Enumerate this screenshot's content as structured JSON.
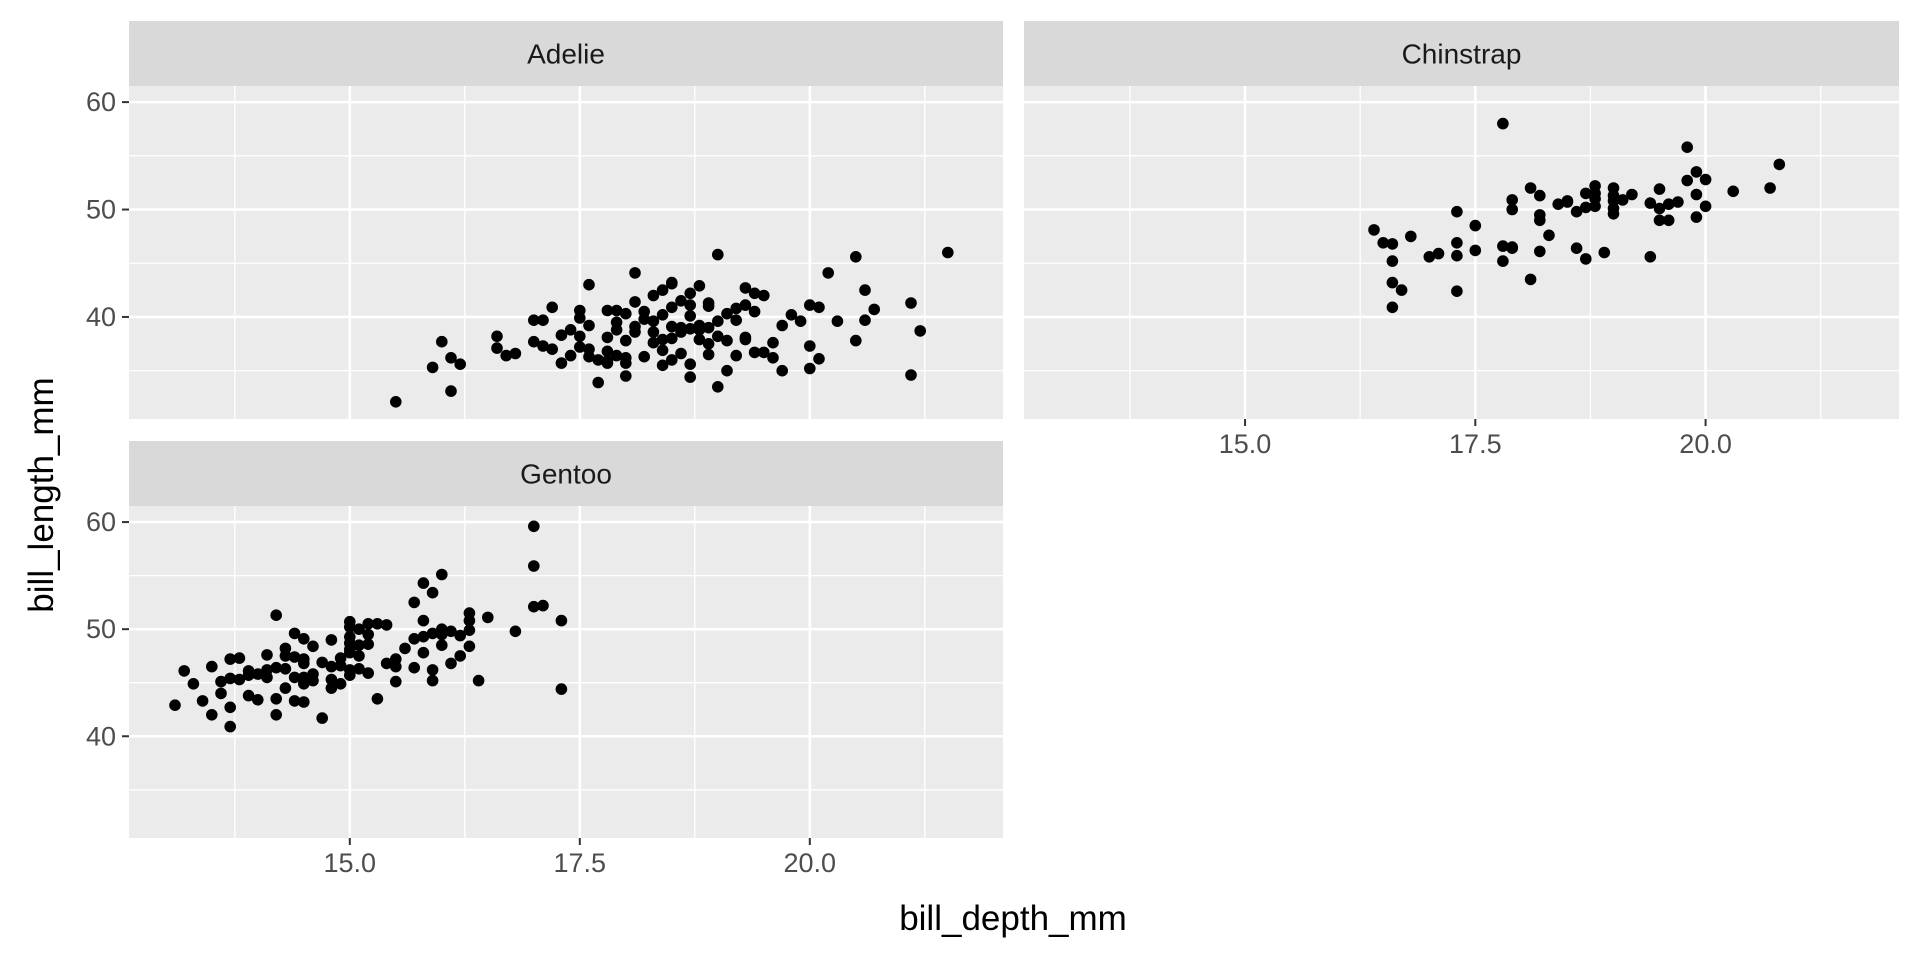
{
  "chart_data": {
    "type": "scatter",
    "xlabel": "bill_depth_mm",
    "ylabel": "bill_length_mm",
    "xlim": [
      12.6,
      22.1
    ],
    "ylim": [
      30.5,
      61.5
    ],
    "x_ticks": [
      15.0,
      17.5,
      20.0
    ],
    "x_tick_labels": [
      "15.0",
      "17.5",
      "20.0"
    ],
    "x_minor_ticks": [
      13.75,
      16.25,
      18.75,
      21.25
    ],
    "y_ticks": [
      40,
      50,
      60
    ],
    "y_tick_labels": [
      "40",
      "50",
      "60"
    ],
    "y_minor_ticks": [
      35,
      45,
      55
    ],
    "grid": true,
    "facets": [
      {
        "label": "Adelie",
        "points": [
          [
            15.5,
            32.1
          ],
          [
            15.9,
            35.3
          ],
          [
            16.0,
            37.7
          ],
          [
            16.1,
            33.1
          ],
          [
            16.1,
            36.2
          ],
          [
            16.2,
            35.6
          ],
          [
            16.6,
            38.2
          ],
          [
            16.6,
            37.1
          ],
          [
            16.7,
            36.4
          ],
          [
            16.8,
            36.6
          ],
          [
            17.0,
            39.7
          ],
          [
            17.1,
            37.3
          ],
          [
            17.2,
            40.9
          ],
          [
            17.2,
            37.0
          ],
          [
            17.3,
            35.7
          ],
          [
            17.4,
            36.4
          ],
          [
            17.4,
            38.8
          ],
          [
            17.5,
            37.2
          ],
          [
            17.5,
            40.6
          ],
          [
            17.5,
            39.9
          ],
          [
            17.6,
            36.3
          ],
          [
            17.6,
            39.2
          ],
          [
            17.7,
            36.0
          ],
          [
            17.7,
            33.9
          ],
          [
            17.8,
            35.7
          ],
          [
            17.8,
            38.1
          ],
          [
            17.8,
            40.6
          ],
          [
            17.9,
            39.5
          ],
          [
            17.9,
            36.4
          ],
          [
            18.0,
            34.5
          ],
          [
            18.0,
            37.8
          ],
          [
            18.0,
            40.3
          ],
          [
            18.0,
            36.2
          ],
          [
            18.1,
            38.6
          ],
          [
            18.1,
            39.1
          ],
          [
            18.2,
            36.3
          ],
          [
            18.3,
            39.6
          ],
          [
            18.4,
            35.5
          ],
          [
            18.5,
            39.1
          ],
          [
            18.5,
            40.9
          ],
          [
            18.6,
            38.6
          ],
          [
            18.7,
            41.1
          ],
          [
            18.7,
            40.1
          ],
          [
            18.8,
            38.8
          ],
          [
            18.8,
            42.9
          ],
          [
            18.9,
            36.5
          ],
          [
            18.9,
            41.3
          ],
          [
            19.0,
            38.2
          ],
          [
            19.1,
            35.0
          ],
          [
            19.1,
            37.8
          ],
          [
            19.2,
            39.7
          ],
          [
            19.3,
            37.9
          ],
          [
            19.3,
            41.1
          ],
          [
            19.3,
            42.7
          ],
          [
            19.4,
            40.5
          ],
          [
            19.4,
            36.7
          ],
          [
            19.5,
            36.7
          ],
          [
            19.6,
            37.6
          ],
          [
            19.7,
            35.0
          ],
          [
            19.7,
            39.2
          ],
          [
            19.8,
            40.2
          ],
          [
            20.0,
            35.2
          ],
          [
            20.0,
            41.1
          ],
          [
            20.0,
            37.3
          ],
          [
            20.1,
            36.1
          ],
          [
            20.2,
            44.1
          ],
          [
            20.3,
            39.6
          ],
          [
            20.5,
            45.6
          ],
          [
            20.5,
            37.8
          ],
          [
            20.6,
            39.7
          ],
          [
            20.6,
            42.5
          ],
          [
            20.7,
            40.7
          ],
          [
            21.1,
            34.6
          ],
          [
            21.1,
            41.3
          ],
          [
            21.2,
            38.7
          ],
          [
            21.5,
            46.0
          ],
          [
            19.0,
            45.8
          ],
          [
            18.4,
            42.5
          ],
          [
            18.7,
            38.9
          ],
          [
            18.3,
            37.6
          ],
          [
            17.9,
            38.8
          ],
          [
            18.2,
            39.8
          ],
          [
            18.5,
            43.2
          ],
          [
            18.1,
            41.4
          ],
          [
            17.6,
            43.0
          ],
          [
            18.9,
            39.0
          ],
          [
            19.2,
            40.8
          ],
          [
            18.4,
            36.9
          ],
          [
            17.8,
            35.9
          ],
          [
            18.6,
            39.0
          ],
          [
            19.0,
            33.5
          ],
          [
            18.3,
            38.6
          ],
          [
            18.6,
            36.6
          ],
          [
            17.3,
            38.3
          ],
          [
            18.8,
            37.9
          ],
          [
            19.5,
            42.0
          ],
          [
            18.0,
            35.7
          ],
          [
            17.0,
            37.7
          ],
          [
            18.9,
            41.0
          ],
          [
            19.4,
            42.2
          ],
          [
            17.1,
            39.7
          ],
          [
            18.2,
            40.5
          ],
          [
            18.4,
            37.9
          ],
          [
            19.9,
            39.6
          ],
          [
            18.7,
            34.4
          ],
          [
            18.9,
            37.5
          ],
          [
            18.5,
            36.0
          ],
          [
            19.6,
            36.2
          ],
          [
            19.1,
            40.3
          ],
          [
            17.9,
            40.6
          ],
          [
            20.1,
            40.9
          ],
          [
            18.5,
            38.0
          ],
          [
            18.7,
            42.2
          ],
          [
            19.3,
            38.1
          ],
          [
            18.8,
            39.2
          ],
          [
            17.6,
            37.0
          ],
          [
            19.2,
            36.4
          ],
          [
            18.3,
            42.0
          ],
          [
            17.5,
            38.2
          ],
          [
            18.6,
            41.5
          ],
          [
            18.1,
            44.1
          ],
          [
            17.8,
            36.8
          ],
          [
            18.4,
            40.2
          ],
          [
            19.0,
            39.6
          ],
          [
            18.5,
            43.1
          ],
          [
            18.7,
            35.6
          ]
        ]
      },
      {
        "label": "Chinstrap",
        "points": [
          [
            16.4,
            48.1
          ],
          [
            16.5,
            46.9
          ],
          [
            16.6,
            46.8
          ],
          [
            16.6,
            45.2
          ],
          [
            16.6,
            43.2
          ],
          [
            16.6,
            40.9
          ],
          [
            16.7,
            42.5
          ],
          [
            16.8,
            47.5
          ],
          [
            17.0,
            45.6
          ],
          [
            17.1,
            45.9
          ],
          [
            17.3,
            49.8
          ],
          [
            17.3,
            46.9
          ],
          [
            17.3,
            45.7
          ],
          [
            17.3,
            42.4
          ],
          [
            17.5,
            48.5
          ],
          [
            17.5,
            46.2
          ],
          [
            17.8,
            58.0
          ],
          [
            17.8,
            46.6
          ],
          [
            17.8,
            45.2
          ],
          [
            17.9,
            50.9
          ],
          [
            17.9,
            50.0
          ],
          [
            17.9,
            46.5
          ],
          [
            18.1,
            52.0
          ],
          [
            18.1,
            43.5
          ],
          [
            18.2,
            51.3
          ],
          [
            18.2,
            49.5
          ],
          [
            18.2,
            49.0
          ],
          [
            18.2,
            46.1
          ],
          [
            18.3,
            47.6
          ],
          [
            18.4,
            50.5
          ],
          [
            18.5,
            50.7
          ],
          [
            18.6,
            49.8
          ],
          [
            18.6,
            46.4
          ],
          [
            18.7,
            51.5
          ],
          [
            18.7,
            50.2
          ],
          [
            18.7,
            45.4
          ],
          [
            18.8,
            52.2
          ],
          [
            18.8,
            51.0
          ],
          [
            18.8,
            50.3
          ],
          [
            18.9,
            46.0
          ],
          [
            19.0,
            52.0
          ],
          [
            19.0,
            51.3
          ],
          [
            19.0,
            50.8
          ],
          [
            19.0,
            49.6
          ],
          [
            19.1,
            50.9
          ],
          [
            19.2,
            51.4
          ],
          [
            19.4,
            50.6
          ],
          [
            19.4,
            45.6
          ],
          [
            19.5,
            51.9
          ],
          [
            19.5,
            50.1
          ],
          [
            19.5,
            49.0
          ],
          [
            19.6,
            50.5
          ],
          [
            19.6,
            49.0
          ],
          [
            19.7,
            50.7
          ],
          [
            19.8,
            55.8
          ],
          [
            19.8,
            52.7
          ],
          [
            19.9,
            53.5
          ],
          [
            19.9,
            51.4
          ],
          [
            19.9,
            49.3
          ],
          [
            20.0,
            52.8
          ],
          [
            20.0,
            50.3
          ],
          [
            20.3,
            51.7
          ],
          [
            20.7,
            52.0
          ],
          [
            20.8,
            54.2
          ],
          [
            18.5,
            50.8
          ],
          [
            19.0,
            50.1
          ],
          [
            17.9,
            46.4
          ],
          [
            18.8,
            51.5
          ]
        ]
      },
      {
        "label": "Gentoo",
        "points": [
          [
            13.1,
            42.9
          ],
          [
            13.2,
            46.1
          ],
          [
            13.3,
            44.9
          ],
          [
            13.4,
            43.3
          ],
          [
            13.5,
            46.5
          ],
          [
            13.5,
            42.0
          ],
          [
            13.6,
            44.0
          ],
          [
            13.7,
            45.4
          ],
          [
            13.7,
            47.2
          ],
          [
            13.7,
            42.7
          ],
          [
            13.7,
            40.9
          ],
          [
            13.8,
            45.3
          ],
          [
            13.8,
            47.3
          ],
          [
            13.9,
            45.7
          ],
          [
            13.9,
            43.8
          ],
          [
            14.0,
            45.8
          ],
          [
            14.0,
            43.4
          ],
          [
            14.1,
            47.6
          ],
          [
            14.1,
            46.2
          ],
          [
            14.2,
            51.3
          ],
          [
            14.2,
            46.4
          ],
          [
            14.2,
            43.5
          ],
          [
            14.2,
            42.0
          ],
          [
            14.3,
            48.2
          ],
          [
            14.3,
            46.3
          ],
          [
            14.3,
            44.5
          ],
          [
            14.4,
            49.6
          ],
          [
            14.4,
            45.5
          ],
          [
            14.4,
            43.3
          ],
          [
            14.5,
            49.1
          ],
          [
            14.5,
            46.8
          ],
          [
            14.5,
            45.5
          ],
          [
            14.5,
            43.2
          ],
          [
            14.6,
            45.8
          ],
          [
            14.6,
            48.4
          ],
          [
            14.7,
            41.7
          ],
          [
            14.8,
            49.0
          ],
          [
            14.8,
            46.5
          ],
          [
            14.8,
            44.5
          ],
          [
            14.9,
            47.3
          ],
          [
            14.9,
            46.6
          ],
          [
            15.0,
            50.7
          ],
          [
            15.0,
            49.3
          ],
          [
            15.0,
            48.7
          ],
          [
            15.0,
            47.8
          ],
          [
            15.0,
            46.2
          ],
          [
            15.1,
            50.0
          ],
          [
            15.1,
            48.5
          ],
          [
            15.1,
            46.3
          ],
          [
            15.2,
            49.5
          ],
          [
            15.2,
            48.6
          ],
          [
            15.2,
            45.9
          ],
          [
            15.3,
            50.5
          ],
          [
            15.3,
            43.5
          ],
          [
            15.4,
            50.4
          ],
          [
            15.4,
            46.8
          ],
          [
            15.5,
            47.2
          ],
          [
            15.5,
            45.1
          ],
          [
            15.6,
            48.2
          ],
          [
            15.7,
            46.4
          ],
          [
            15.7,
            52.5
          ],
          [
            15.8,
            50.8
          ],
          [
            15.8,
            54.3
          ],
          [
            15.8,
            47.8
          ],
          [
            15.9,
            53.4
          ],
          [
            15.9,
            49.6
          ],
          [
            15.9,
            46.2
          ],
          [
            15.9,
            45.2
          ],
          [
            16.0,
            50.0
          ],
          [
            16.0,
            49.5
          ],
          [
            16.0,
            55.1
          ],
          [
            16.1,
            49.8
          ],
          [
            16.1,
            46.8
          ],
          [
            16.2,
            49.4
          ],
          [
            16.3,
            50.8
          ],
          [
            16.3,
            48.4
          ],
          [
            16.3,
            49.9
          ],
          [
            16.4,
            45.2
          ],
          [
            16.5,
            51.1
          ],
          [
            16.8,
            49.8
          ],
          [
            17.0,
            59.6
          ],
          [
            17.0,
            55.9
          ],
          [
            17.0,
            52.1
          ],
          [
            17.1,
            52.2
          ],
          [
            17.3,
            50.8
          ],
          [
            17.3,
            44.4
          ],
          [
            14.6,
            45.2
          ],
          [
            14.9,
            44.9
          ],
          [
            15.0,
            45.7
          ],
          [
            15.1,
            47.5
          ],
          [
            14.4,
            47.4
          ],
          [
            14.1,
            45.5
          ],
          [
            13.9,
            46.1
          ],
          [
            15.7,
            49.1
          ],
          [
            16.0,
            48.5
          ],
          [
            14.7,
            46.9
          ],
          [
            15.0,
            50.2
          ],
          [
            15.5,
            46.5
          ],
          [
            14.3,
            47.5
          ],
          [
            13.6,
            45.1
          ],
          [
            14.5,
            44.9
          ],
          [
            15.8,
            49.3
          ],
          [
            16.2,
            47.5
          ],
          [
            15.2,
            50.5
          ],
          [
            14.8,
            45.3
          ],
          [
            16.3,
            51.5
          ],
          [
            14.5,
            47.2
          ],
          [
            15.0,
            48.1
          ]
        ]
      }
    ]
  }
}
